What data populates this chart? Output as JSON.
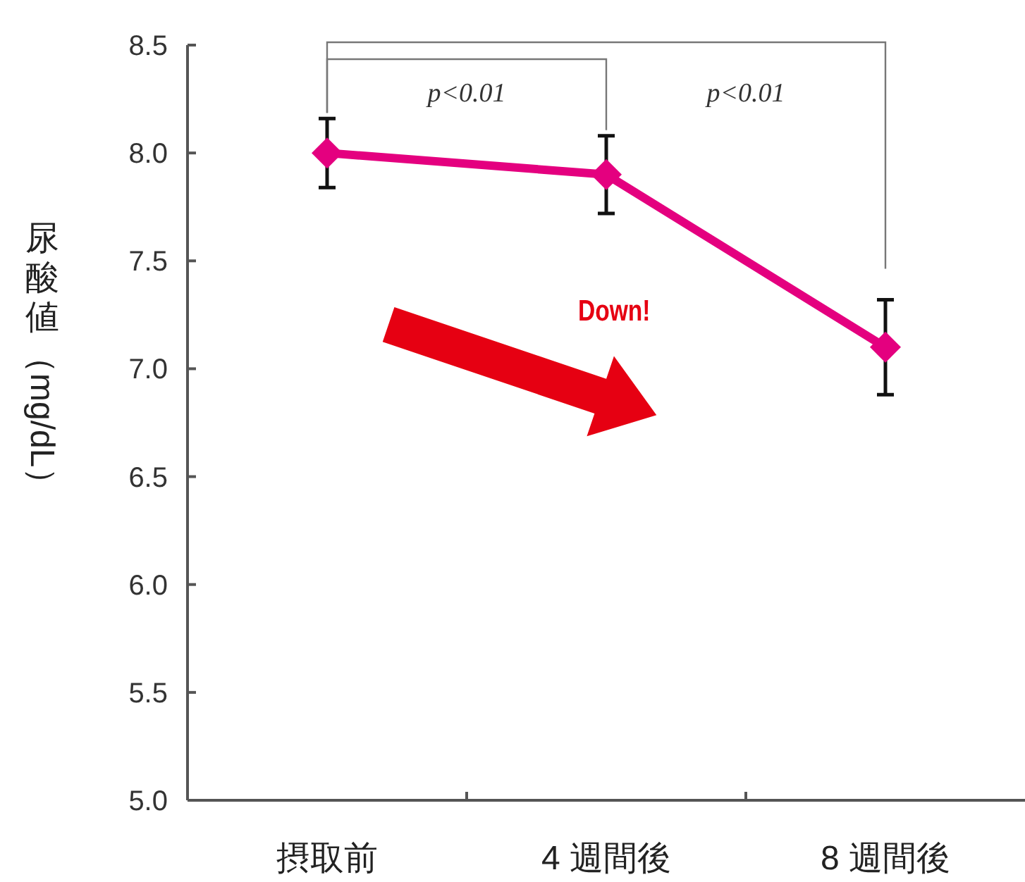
{
  "chart_data": {
    "type": "line",
    "ylabel": "尿酸値（mg/dL）",
    "categories": [
      "摂取前",
      "4 週間後",
      "8 週間後"
    ],
    "series": [
      {
        "color": "#e4007f",
        "values": [
          8.0,
          7.9,
          7.1
        ],
        "errors": [
          0.16,
          0.18,
          0.22
        ]
      }
    ],
    "ylim": [
      5.0,
      8.5
    ],
    "yticks": [
      {
        "value": 5,
        "label": "5.0"
      },
      {
        "value": 5.5,
        "label": "5.5"
      },
      {
        "value": 6,
        "label": "6.0"
      },
      {
        "value": 6.5,
        "label": "6.5"
      },
      {
        "value": 7,
        "label": "7.0"
      },
      {
        "value": 7.5,
        "label": "7.5"
      },
      {
        "value": 8,
        "label": "8.0"
      },
      {
        "value": 8.5,
        "label": "8.5"
      }
    ],
    "marker": "diamond",
    "grid": false,
    "annotations": [
      "p<0.01",
      "p<0.01",
      "Down!"
    ]
  }
}
